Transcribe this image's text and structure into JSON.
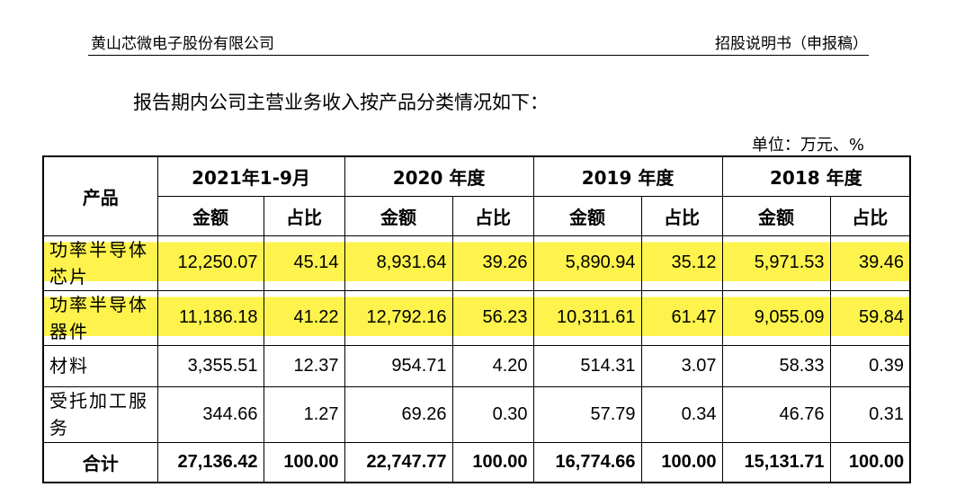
{
  "header": {
    "company": "黄山芯微电子股份有限公司",
    "doc": "招股说明书（申报稿）"
  },
  "intro": "报告期内公司主营业务收入按产品分类情况如下：",
  "unit": "单位：万元、%",
  "table": {
    "product_label": "产品",
    "periods": [
      "2021年1-9月",
      "2020 年度",
      "2019 年度",
      "2018 年度"
    ],
    "sub_amount": "金额",
    "sub_ratio": "占比",
    "rows": [
      {
        "name": "功率半导体芯片",
        "values": [
          "12,250.07",
          "45.14",
          "8,931.64",
          "39.26",
          "5,890.94",
          "35.12",
          "5,971.53",
          "39.46"
        ]
      },
      {
        "name": "功率半导体器件",
        "values": [
          "11,186.18",
          "41.22",
          "12,792.16",
          "56.23",
          "10,311.61",
          "61.47",
          "9,055.09",
          "59.84"
        ]
      },
      {
        "name": "材料",
        "values": [
          "3,355.51",
          "12.37",
          "954.71",
          "4.20",
          "514.31",
          "3.07",
          "58.33",
          "0.39"
        ]
      },
      {
        "name": "受托加工服务",
        "values": [
          "344.66",
          "1.27",
          "69.26",
          "0.30",
          "57.79",
          "0.34",
          "46.76",
          "0.31"
        ]
      }
    ],
    "total": {
      "name": "合计",
      "values": [
        "27,136.42",
        "100.00",
        "22,747.77",
        "100.00",
        "16,774.66",
        "100.00",
        "15,131.71",
        "100.00"
      ]
    }
  },
  "highlight_color": "#fdf34c"
}
